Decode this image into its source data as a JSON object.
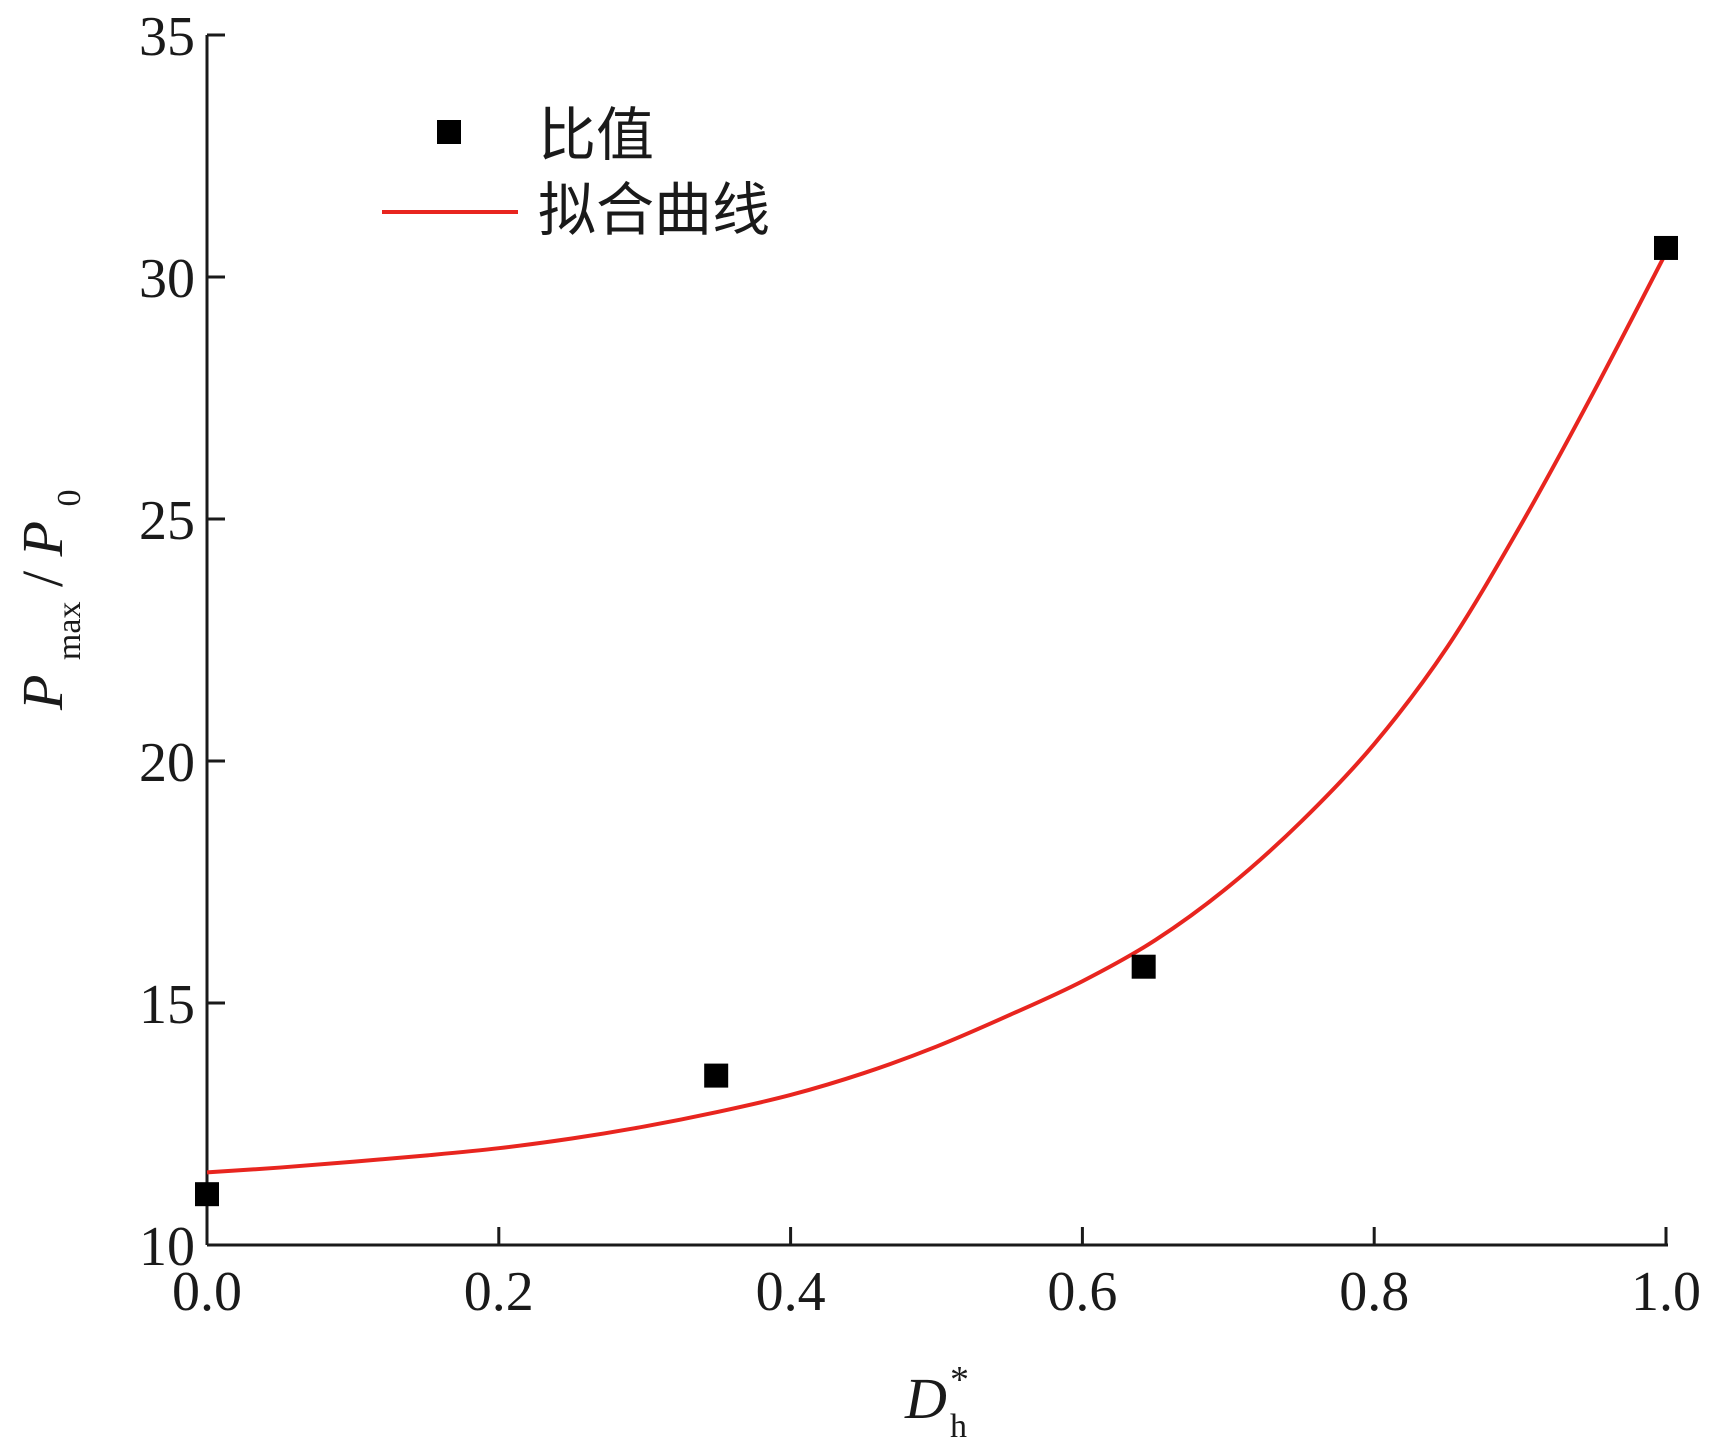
{
  "chart_data": {
    "type": "scatter",
    "xlim": [
      0.0,
      1.0
    ],
    "ylim": [
      10,
      35
    ],
    "x_ticks": [
      0.0,
      0.2,
      0.4,
      0.6,
      0.8,
      1.0
    ],
    "x_tick_labels": [
      "0.0",
      "0.2",
      "0.4",
      "0.6",
      "0.8",
      "1.0"
    ],
    "y_ticks": [
      10,
      15,
      20,
      25,
      30,
      35
    ],
    "y_tick_labels": [
      "10",
      "15",
      "20",
      "25",
      "30",
      "35"
    ],
    "xlabel": {
      "main": "D",
      "sub": "h",
      "sup": "*"
    },
    "ylabel": {
      "main": "P",
      "sub": "max",
      "sep": "/",
      "main2": "P",
      "sub2": "0"
    },
    "grid": false,
    "legend_position": "top-left",
    "series": [
      {
        "name": "比值",
        "kind": "scatter",
        "marker": "square",
        "color": "#000000",
        "x": [
          0.0,
          0.349,
          0.642,
          1.0
        ],
        "y": [
          11.05,
          13.5,
          15.75,
          30.6
        ]
      },
      {
        "name": "拟合曲线",
        "kind": "line",
        "color": "#e8251f",
        "x": [
          0.0,
          0.05,
          0.1,
          0.15,
          0.2,
          0.25,
          0.3,
          0.35,
          0.4,
          0.45,
          0.5,
          0.55,
          0.6,
          0.65,
          0.7,
          0.75,
          0.8,
          0.85,
          0.9,
          0.95,
          1.0
        ],
        "y": [
          11.5,
          11.6,
          11.72,
          11.85,
          12.0,
          12.2,
          12.45,
          12.75,
          13.1,
          13.55,
          14.1,
          14.75,
          15.45,
          16.3,
          17.4,
          18.75,
          20.35,
          22.35,
          24.85,
          27.6,
          30.5
        ]
      }
    ]
  }
}
